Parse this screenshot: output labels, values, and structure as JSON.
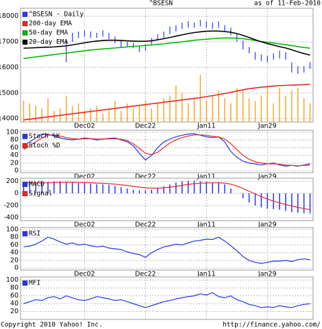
{
  "chart_data": [
    {
      "type": "line",
      "title": "^BSESN",
      "subtitle": "as of 11-Feb-2010",
      "categories": [
        null,
        null,
        null,
        null,
        null,
        null,
        null,
        null,
        null,
        null,
        "Dec02",
        null,
        null,
        null,
        null,
        null,
        null,
        null,
        null,
        null,
        "Dec22",
        null,
        null,
        null,
        null,
        null,
        null,
        null,
        null,
        null,
        "Jan11",
        null,
        null,
        null,
        null,
        null,
        null,
        null,
        null,
        null,
        "Jan29",
        null,
        null,
        null,
        null,
        null,
        null,
        null
      ],
      "ylim": [
        13870,
        18310
      ],
      "yticks": [
        14000,
        15000,
        16000,
        17000,
        18000
      ],
      "grid": true,
      "series": [
        {
          "style": "bar",
          "color": "#f5a623",
          "values": [
            14700,
            14600,
            14500,
            14400,
            14800,
            14300,
            14400,
            14900,
            14500,
            14600,
            14300,
            14400,
            14500,
            14200,
            14400,
            14700,
            14300,
            14600,
            14400,
            14500,
            14700,
            14400,
            14600,
            14800,
            14900,
            15300,
            15000,
            14600,
            14800,
            15700,
            14700,
            14900,
            15100,
            14800,
            14600,
            15200,
            15100,
            14800,
            14700,
            14900,
            15300,
            14600,
            15200,
            14900,
            15100,
            15200,
            14800,
            14600
          ]
        },
        {
          "name": "^BSESN - Daily",
          "style": "hl",
          "color": "#3333ff",
          "high": [
            null,
            null,
            null,
            null,
            null,
            null,
            null,
            17050,
            17350,
            17400,
            17450,
            17400,
            17350,
            17450,
            17350,
            17200,
            17050,
            17000,
            16950,
            16850,
            16900,
            17150,
            17300,
            17400,
            17600,
            17650,
            17750,
            17800,
            17750,
            17850,
            17800,
            17750,
            17800,
            17650,
            17550,
            17300,
            17050,
            16800,
            16600,
            16500,
            16450,
            16550,
            16650,
            16600,
            16200,
            16050,
            16050,
            16200
          ],
          "low": [
            null,
            null,
            null,
            null,
            null,
            null,
            null,
            16200,
            17000,
            17150,
            17200,
            17150,
            17150,
            17200,
            17100,
            16950,
            16800,
            16800,
            16750,
            16600,
            16650,
            16900,
            17050,
            17150,
            17300,
            17400,
            17500,
            17550,
            17550,
            17600,
            17550,
            17500,
            17550,
            17400,
            17250,
            17000,
            16700,
            16550,
            16300,
            16250,
            16200,
            16300,
            16350,
            16300,
            15800,
            15750,
            15800,
            15950
          ]
        },
        {
          "name": "200-day EMA",
          "color": "#ee2222",
          "values": [
            13950,
            13980,
            14010,
            14040,
            14070,
            14100,
            14130,
            14160,
            14190,
            14220,
            14250,
            14280,
            14310,
            14340,
            14370,
            14400,
            14430,
            14460,
            14490,
            14520,
            14550,
            14580,
            14610,
            14640,
            14670,
            14700,
            14730,
            14760,
            14790,
            14820,
            14860,
            14900,
            14940,
            14980,
            15030,
            15080,
            15130,
            15170,
            15200,
            15230,
            15250,
            15270,
            15290,
            15300,
            15310,
            15320,
            15330,
            15340
          ]
        },
        {
          "name": "50-day EMA",
          "color": "#00bb00",
          "values": [
            16350,
            16380,
            16410,
            16440,
            16470,
            16500,
            16530,
            16560,
            16590,
            16620,
            16650,
            16680,
            16700,
            16720,
            16740,
            16760,
            16780,
            16800,
            16820,
            16840,
            16860,
            16880,
            16900,
            16920,
            16950,
            16970,
            17000,
            17030,
            17060,
            17080,
            17100,
            17120,
            17140,
            17150,
            17150,
            17140,
            17120,
            17090,
            17050,
            17010,
            16980,
            16950,
            16920,
            16890,
            16850,
            16810,
            16780,
            16750
          ]
        },
        {
          "name": "20-day EMA",
          "color": "#000000",
          "values": [
            16750,
            16760,
            16770,
            16780,
            16790,
            16800,
            16820,
            16840,
            16880,
            16920,
            16960,
            17000,
            17030,
            17050,
            17060,
            17060,
            17050,
            17040,
            17030,
            17020,
            17020,
            17040,
            17080,
            17120,
            17170,
            17220,
            17270,
            17320,
            17360,
            17390,
            17410,
            17420,
            17420,
            17400,
            17370,
            17320,
            17250,
            17170,
            17080,
            17000,
            16930,
            16870,
            16810,
            16760,
            16690,
            16610,
            16540,
            16480
          ]
        }
      ]
    },
    {
      "type": "line",
      "ylim": [
        -5,
        105
      ],
      "yticks": [
        0,
        20,
        40,
        60,
        80,
        100
      ],
      "grid": true,
      "series": [
        {
          "name": "Stoch %K",
          "color": "#2233ee",
          "values": [
            65,
            75,
            85,
            95,
            95,
            90,
            85,
            82,
            80,
            82,
            85,
            83,
            80,
            82,
            84,
            85,
            80,
            75,
            65,
            45,
            28,
            40,
            60,
            75,
            82,
            88,
            92,
            95,
            96,
            92,
            88,
            86,
            88,
            75,
            50,
            35,
            25,
            20,
            18,
            15,
            18,
            20,
            15,
            12,
            14,
            12,
            15,
            18
          ]
        },
        {
          "name": "Stoch %D",
          "color": "#ee2222",
          "values": [
            55,
            65,
            75,
            85,
            92,
            93,
            90,
            86,
            83,
            82,
            83,
            83,
            82,
            82,
            83,
            83,
            82,
            78,
            70,
            58,
            45,
            42,
            48,
            60,
            72,
            80,
            86,
            90,
            93,
            93,
            92,
            89,
            88,
            82,
            70,
            55,
            40,
            30,
            23,
            20,
            18,
            18,
            17,
            15,
            14,
            13,
            14,
            15
          ]
        }
      ]
    },
    {
      "type": "line",
      "ylim": [
        -450,
        250
      ],
      "yticks": [
        -400,
        -200,
        0,
        200
      ],
      "grid": true,
      "series": [
        {
          "name": "MACD",
          "style": "bar",
          "color": "#2233ee",
          "values": [
            150,
            160,
            170,
            180,
            190,
            200,
            200,
            190,
            180,
            170,
            170,
            160,
            150,
            150,
            140,
            120,
            100,
            80,
            60,
            50,
            50,
            60,
            90,
            120,
            150,
            180,
            200,
            210,
            210,
            200,
            190,
            180,
            180,
            150,
            80,
            0,
            -80,
            -150,
            -200,
            -230,
            -250,
            -260,
            -270,
            -290,
            -310,
            -320,
            -330,
            -330
          ]
        },
        {
          "name": "Signal",
          "color": "#ee2222",
          "values": [
            180,
            175,
            172,
            172,
            174,
            177,
            180,
            182,
            182,
            180,
            178,
            175,
            170,
            166,
            160,
            152,
            142,
            130,
            116,
            103,
            92,
            86,
            86,
            92,
            102,
            116,
            132,
            148,
            160,
            168,
            172,
            174,
            176,
            170,
            152,
            122,
            82,
            36,
            -10,
            -54,
            -93,
            -126,
            -155,
            -182,
            -208,
            -230,
            -250,
            -266
          ]
        }
      ]
    },
    {
      "type": "line",
      "ylim": [
        -5,
        105
      ],
      "yticks": [
        0,
        20,
        40,
        60,
        80,
        100
      ],
      "grid": true,
      "series": [
        {
          "name": "RSI",
          "color": "#2233ee",
          "values": [
            55,
            57,
            62,
            70,
            80,
            75,
            68,
            62,
            65,
            60,
            62,
            58,
            55,
            57,
            52,
            50,
            48,
            42,
            38,
            35,
            28,
            40,
            48,
            55,
            58,
            62,
            60,
            65,
            70,
            72,
            75,
            74,
            80,
            70,
            58,
            45,
            30,
            20,
            15,
            12,
            15,
            18,
            18,
            20,
            17,
            22,
            24,
            22
          ]
        }
      ]
    },
    {
      "type": "line",
      "ylim": [
        0,
        108
      ],
      "yticks": [
        20,
        40,
        60,
        80,
        100
      ],
      "grid": true,
      "series": [
        {
          "name": "MFI",
          "color": "#2233ee",
          "values": [
            40,
            45,
            50,
            48,
            55,
            58,
            52,
            60,
            55,
            50,
            48,
            52,
            58,
            55,
            52,
            48,
            50,
            45,
            40,
            35,
            30,
            35,
            40,
            45,
            48,
            52,
            55,
            58,
            60,
            65,
            62,
            68,
            58,
            55,
            60,
            50,
            45,
            38,
            35,
            30,
            32,
            30,
            35,
            32,
            30,
            35,
            38,
            40
          ]
        }
      ]
    }
  ],
  "footer": {
    "copyright": "Copyright 2010 Yahoo! Inc.",
    "url": "http://finance.yahoo.com/"
  }
}
